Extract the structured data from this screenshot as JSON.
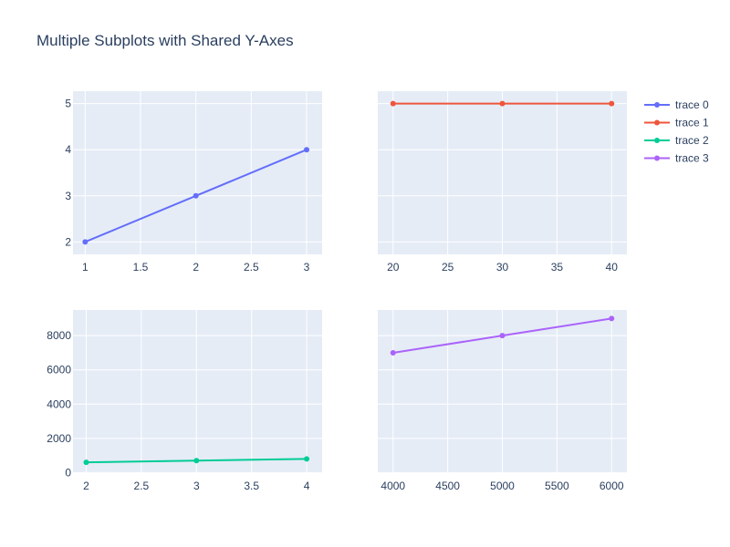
{
  "chart_data": {
    "type": "line",
    "title": "Multiple Subplots with Shared Y-Axes",
    "legend_placement": "top-right",
    "grid": true,
    "colors": {
      "plot_bg": "#e5ecf6",
      "grid": "#ffffff",
      "text": "#2a3f5f"
    },
    "series": [
      {
        "name": "trace 0",
        "color": "#636efa",
        "x": [
          1,
          2,
          3
        ],
        "y": [
          2,
          3,
          4
        ]
      },
      {
        "name": "trace 1",
        "color": "#ef553b",
        "x": [
          20,
          30,
          40
        ],
        "y": [
          5,
          5,
          5
        ]
      },
      {
        "name": "trace 2",
        "color": "#00cc96",
        "x": [
          2,
          3,
          4
        ],
        "y": [
          600,
          700,
          800
        ]
      },
      {
        "name": "trace 3",
        "color": "#ab63fa",
        "x": [
          4000,
          5000,
          6000
        ],
        "y": [
          7000,
          8000,
          9000
        ]
      }
    ],
    "subplots": [
      {
        "series": 0,
        "xlim": [
          0.89,
          3.14
        ],
        "ylim": [
          1.73,
          5.27
        ],
        "xticks": [
          1,
          1.5,
          2,
          2.5,
          3
        ],
        "xtick_labels": [
          "1",
          "1.5",
          "2",
          "2.5",
          "3"
        ],
        "yticks": [
          2,
          3,
          4,
          5
        ],
        "ytick_labels": [
          "2",
          "3",
          "4",
          "5"
        ]
      },
      {
        "series": 1,
        "xlim": [
          18.6,
          41.4
        ],
        "ylim": [
          1.73,
          5.27
        ],
        "xticks": [
          20,
          25,
          30,
          35,
          40
        ],
        "xtick_labels": [
          "20",
          "25",
          "30",
          "35",
          "40"
        ],
        "yticks": [
          2,
          3,
          4,
          5
        ],
        "ytick_labels": []
      },
      {
        "series": 2,
        "xlim": [
          1.88,
          4.14
        ],
        "ylim": [
          -30,
          9500
        ],
        "xticks": [
          2,
          2.5,
          3,
          3.5,
          4
        ],
        "xtick_labels": [
          "2",
          "2.5",
          "3",
          "3.5",
          "4"
        ],
        "yticks": [
          0,
          2000,
          4000,
          6000,
          8000
        ],
        "ytick_labels": [
          "0",
          "2000",
          "4000",
          "6000",
          "8000"
        ]
      },
      {
        "series": 3,
        "xlim": [
          3860,
          6140
        ],
        "ylim": [
          -30,
          9500
        ],
        "xticks": [
          4000,
          4500,
          5000,
          5500,
          6000
        ],
        "xtick_labels": [
          "4000",
          "4500",
          "5000",
          "5500",
          "6000"
        ],
        "yticks": [
          0,
          2000,
          4000,
          6000,
          8000
        ],
        "ytick_labels": []
      }
    ]
  }
}
